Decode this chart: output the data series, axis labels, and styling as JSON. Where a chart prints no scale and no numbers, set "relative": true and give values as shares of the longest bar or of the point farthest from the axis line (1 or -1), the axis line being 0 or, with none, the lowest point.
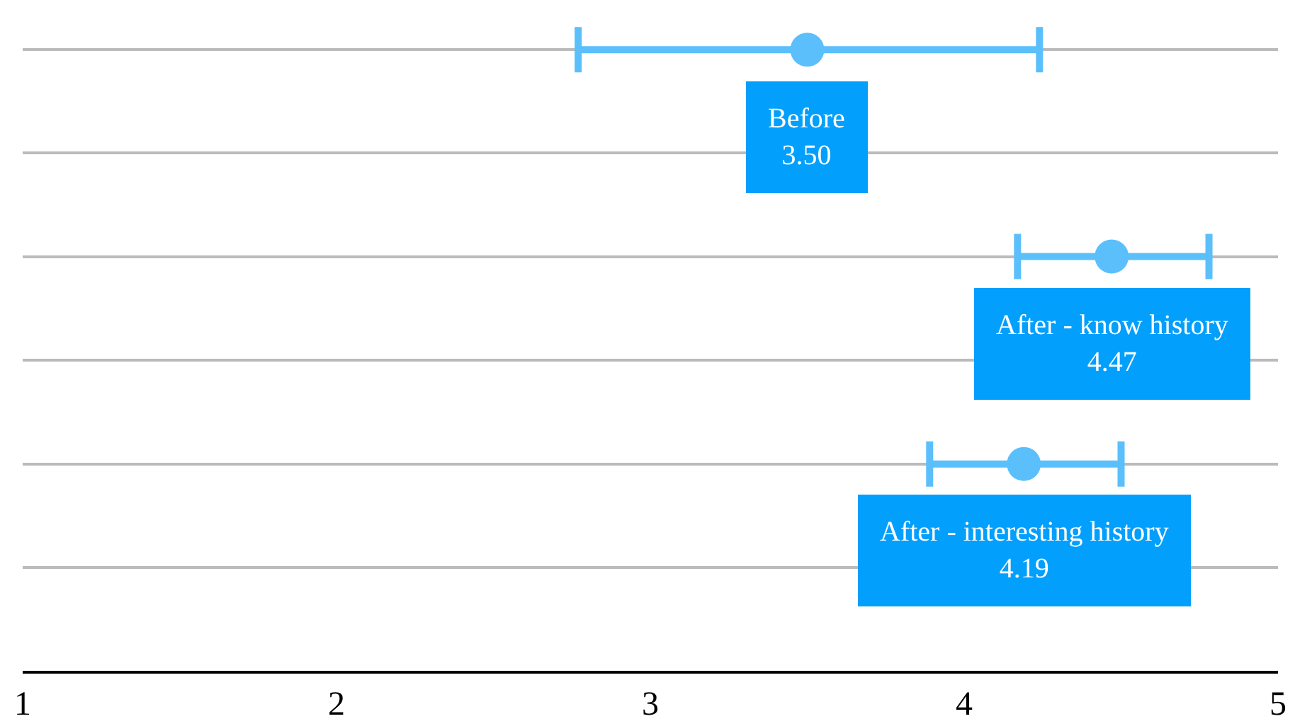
{
  "chart_data": {
    "type": "scatter",
    "x": [
      3.5,
      4.47,
      4.19
    ],
    "values": [
      1,
      0.667,
      0.333
    ],
    "relative": true,
    "xerrors": [
      [
        2.77,
        4.24
      ],
      [
        4.17,
        4.78
      ],
      [
        3.89,
        4.5
      ]
    ],
    "color": "#5bbffc",
    "annotations": [
      {
        "text": "Before\n3.50",
        "x": 3.5,
        "y": 1
      },
      {
        "text": "After - know history\n4.47",
        "x": 4.47,
        "y": 0.667
      },
      {
        "text": "After - interesting history\n4.19",
        "x": 4.19,
        "y": 0.333
      }
    ],
    "marker": "circle",
    "xlim": [
      1,
      5
    ],
    "xticks": [
      1,
      2,
      3,
      4,
      5
    ],
    "grid": "y"
  }
}
